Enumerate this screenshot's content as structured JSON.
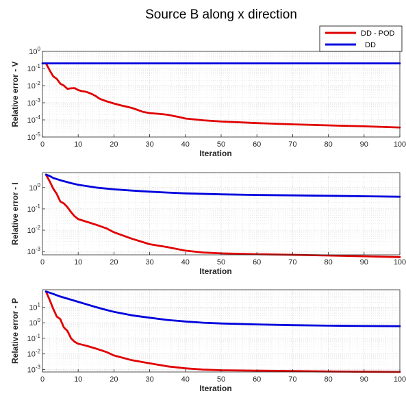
{
  "figure": {
    "title": "Source B along x direction",
    "legend": {
      "placement": "top-right",
      "entries": [
        {
          "label": "DD - POD",
          "color": "#e00000"
        },
        {
          "label": "DD",
          "color": "#0000dd"
        }
      ]
    }
  },
  "chart_data": [
    {
      "type": "line",
      "xlabel": "Iteration",
      "ylabel": "Relative error - V",
      "xlim": [
        0,
        100
      ],
      "ylim": [
        1e-05,
        1
      ],
      "yscale": "log",
      "grid": true,
      "x_ticks": [
        "0",
        "10",
        "20",
        "30",
        "40",
        "50",
        "60",
        "70",
        "80",
        "90",
        "100"
      ],
      "y_ticks": [
        {
          "value": 1,
          "base": "10",
          "exp": "0"
        },
        {
          "value": 0.1,
          "base": "10",
          "exp": "-1"
        },
        {
          "value": 0.01,
          "base": "10",
          "exp": "-2"
        },
        {
          "value": 0.001,
          "base": "10",
          "exp": "-3"
        },
        {
          "value": 0.0001,
          "base": "10",
          "exp": "-4"
        },
        {
          "value": 1e-05,
          "base": "10",
          "exp": "-5"
        }
      ],
      "series": [
        {
          "name": "DD - POD",
          "color": "#e00000",
          "x": [
            1,
            2,
            3,
            4,
            5,
            6,
            7,
            8,
            9,
            10,
            11,
            12,
            13,
            14,
            15,
            16,
            18,
            20,
            22,
            25,
            28,
            30,
            33,
            35,
            38,
            40,
            45,
            50,
            60,
            70,
            80,
            90,
            100
          ],
          "y": [
            0.2,
            0.08,
            0.035,
            0.025,
            0.013,
            0.01,
            0.0065,
            0.007,
            0.0072,
            0.0055,
            0.0048,
            0.0045,
            0.0038,
            0.0031,
            0.0024,
            0.0017,
            0.0012,
            0.0009,
            0.0007,
            0.0005,
            0.0003,
            0.00025,
            0.00022,
            0.0002,
            0.00015,
            0.00012,
            9.5e-05,
            8e-05,
            6.5e-05,
            5.5e-05,
            4.8e-05,
            4.2e-05,
            3.6e-05
          ]
        },
        {
          "name": "DD",
          "color": "#0000dd",
          "x": [
            0,
            100
          ],
          "y": [
            0.2,
            0.2
          ]
        }
      ]
    },
    {
      "type": "line",
      "xlabel": "Iteration",
      "ylabel": "Relative error - I",
      "xlim": [
        0,
        100
      ],
      "ylim": [
        0.0007,
        5
      ],
      "yscale": "log",
      "grid": true,
      "x_ticks": [
        "0",
        "10",
        "20",
        "30",
        "40",
        "50",
        "60",
        "70",
        "80",
        "90",
        "100"
      ],
      "y_ticks": [
        {
          "value": 1,
          "base": "10",
          "exp": "0"
        },
        {
          "value": 0.1,
          "base": "10",
          "exp": "-1"
        },
        {
          "value": 0.01,
          "base": "10",
          "exp": "-2"
        },
        {
          "value": 0.001,
          "base": "10",
          "exp": "-3"
        }
      ],
      "series": [
        {
          "name": "DD - POD",
          "color": "#e00000",
          "x": [
            1,
            2,
            3,
            4,
            5,
            6,
            7,
            8,
            9,
            10,
            12,
            15,
            18,
            20,
            25,
            30,
            35,
            40,
            45,
            50,
            60,
            70,
            80,
            90,
            100
          ],
          "y": [
            4.0,
            2.0,
            0.9,
            0.5,
            0.22,
            0.18,
            0.12,
            0.07,
            0.045,
            0.033,
            0.026,
            0.018,
            0.012,
            0.008,
            0.004,
            0.0022,
            0.0016,
            0.0011,
            0.0009,
            0.00082,
            0.00075,
            0.0007,
            0.00065,
            0.0006,
            0.00055
          ]
        },
        {
          "name": "DD",
          "color": "#0000dd",
          "x": [
            1,
            2,
            3,
            5,
            8,
            10,
            15,
            20,
            25,
            30,
            35,
            40,
            50,
            60,
            70,
            80,
            90,
            100
          ],
          "y": [
            4.0,
            3.5,
            2.8,
            2.2,
            1.6,
            1.35,
            1.0,
            0.82,
            0.72,
            0.64,
            0.58,
            0.53,
            0.48,
            0.45,
            0.43,
            0.41,
            0.39,
            0.37
          ]
        }
      ]
    },
    {
      "type": "line",
      "xlabel": "Iteration",
      "ylabel": "Relative error - P",
      "xlim": [
        0,
        100
      ],
      "ylim": [
        0.0007,
        130
      ],
      "yscale": "log",
      "grid": true,
      "x_ticks": [
        "0",
        "10",
        "20",
        "30",
        "40",
        "50",
        "60",
        "70",
        "80",
        "90",
        "100"
      ],
      "y_ticks": [
        {
          "value": 10,
          "base": "10",
          "exp": "1"
        },
        {
          "value": 1,
          "base": "10",
          "exp": "0"
        },
        {
          "value": 0.1,
          "base": "10",
          "exp": "-1"
        },
        {
          "value": 0.01,
          "base": "10",
          "exp": "-2"
        },
        {
          "value": 0.001,
          "base": "10",
          "exp": "-3"
        }
      ],
      "series": [
        {
          "name": "DD - POD",
          "color": "#e00000",
          "x": [
            1,
            2,
            3,
            4,
            5,
            6,
            7,
            8,
            9,
            10,
            12,
            15,
            18,
            20,
            25,
            30,
            35,
            40,
            45,
            50,
            60,
            70,
            80,
            90,
            100
          ],
          "y": [
            100,
            30,
            8,
            2.5,
            1.7,
            0.5,
            0.3,
            0.1,
            0.06,
            0.045,
            0.035,
            0.022,
            0.013,
            0.008,
            0.004,
            0.0025,
            0.0016,
            0.0012,
            0.001,
            0.0009,
            0.00085,
            0.0008,
            0.00075,
            0.00072,
            0.0007
          ]
        },
        {
          "name": "DD",
          "color": "#0000dd",
          "x": [
            1,
            3,
            5,
            8,
            10,
            12,
            15,
            18,
            20,
            25,
            30,
            35,
            40,
            45,
            50,
            60,
            70,
            80,
            90,
            100
          ],
          "y": [
            100,
            70,
            48,
            30,
            22,
            16,
            10,
            6.5,
            5,
            3,
            2.1,
            1.5,
            1.2,
            1.0,
            0.9,
            0.78,
            0.7,
            0.65,
            0.62,
            0.6
          ]
        }
      ]
    }
  ]
}
